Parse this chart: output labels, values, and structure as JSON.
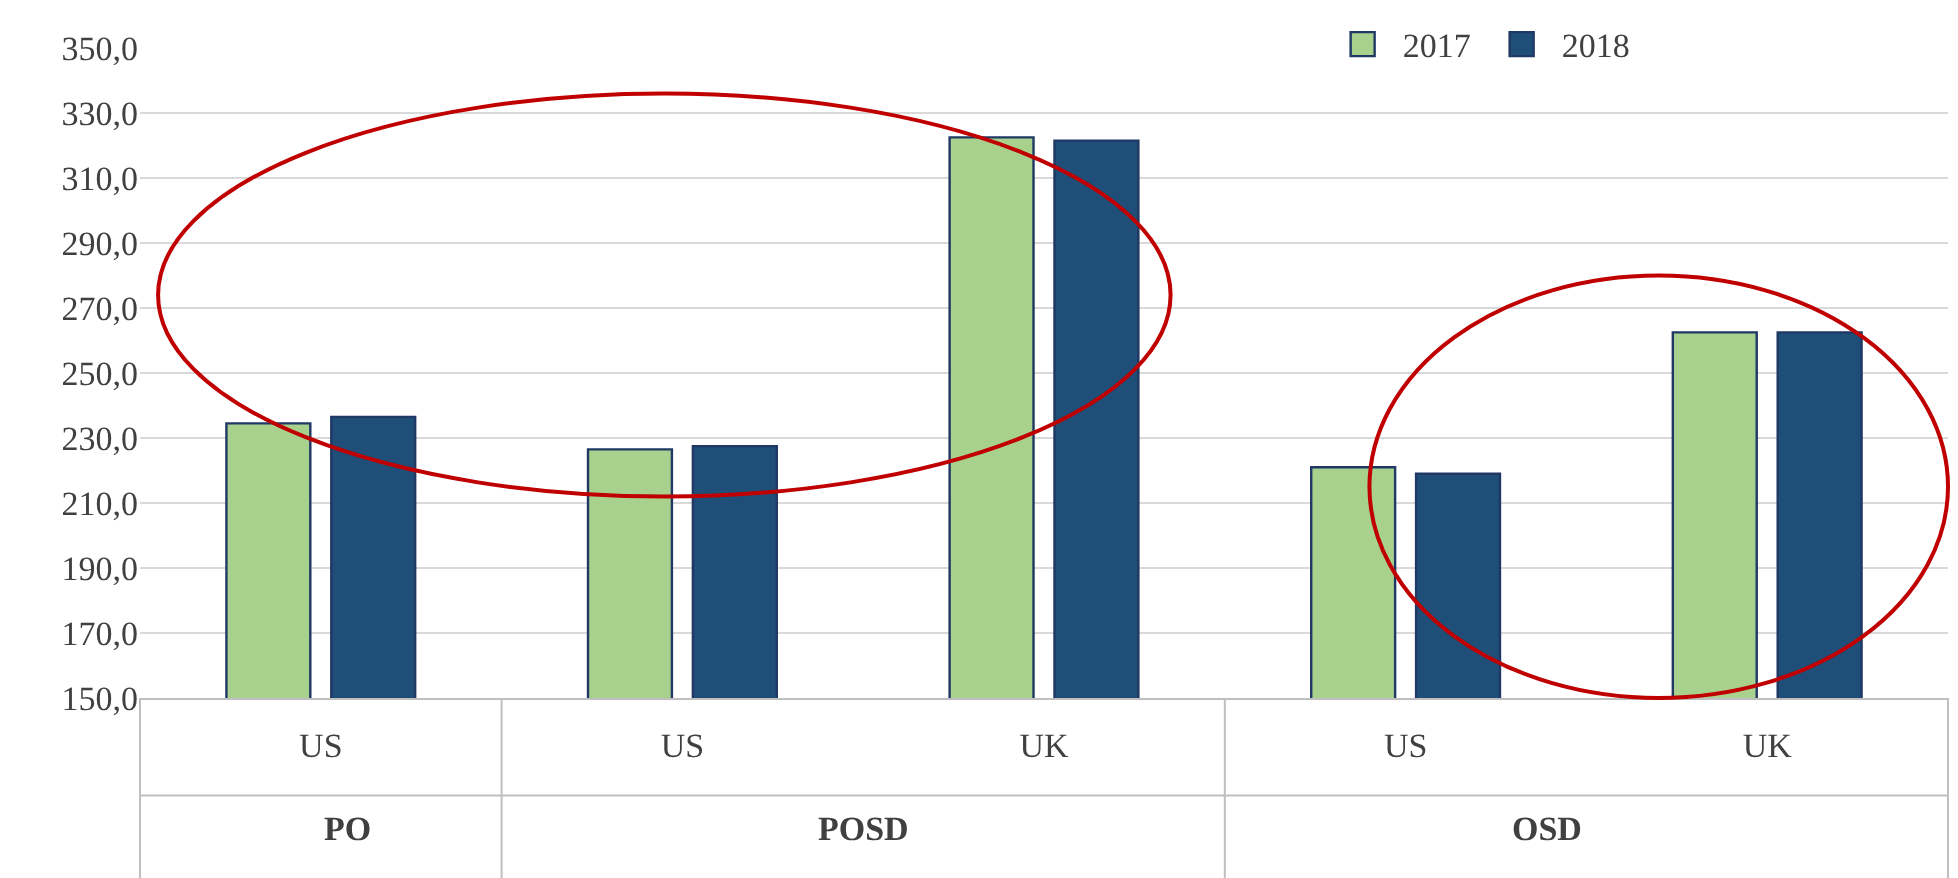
{
  "chart_data": {
    "type": "bar",
    "categories": [
      "US",
      "US",
      "UK",
      "US",
      "UK"
    ],
    "series": [
      {
        "name": "2017",
        "color": "#a9d18e",
        "values": [
          234.5,
          226.5,
          322.5,
          221,
          262.5
        ]
      },
      {
        "name": "2018",
        "color": "#1f4e79",
        "values": [
          236.5,
          227.5,
          321.5,
          219,
          262.5
        ]
      }
    ],
    "ylim": [
      150,
      350
    ],
    "yticks": [
      {
        "value": 150,
        "label": "150,0"
      },
      {
        "value": 170,
        "label": "170,0"
      },
      {
        "value": 190,
        "label": "190,0"
      },
      {
        "value": 210,
        "label": "210,0"
      },
      {
        "value": 230,
        "label": "230,0"
      },
      {
        "value": 250,
        "label": "250,0"
      },
      {
        "value": 270,
        "label": "270,0"
      },
      {
        "value": 290,
        "label": "290,0"
      },
      {
        "value": 310,
        "label": "310,0"
      },
      {
        "value": 330,
        "label": "330,0"
      },
      {
        "value": 350,
        "label": "350,0"
      }
    ],
    "annotations": [
      "PO",
      "POSD",
      "OSD"
    ],
    "grid": "y",
    "legend": "top right"
  }
}
